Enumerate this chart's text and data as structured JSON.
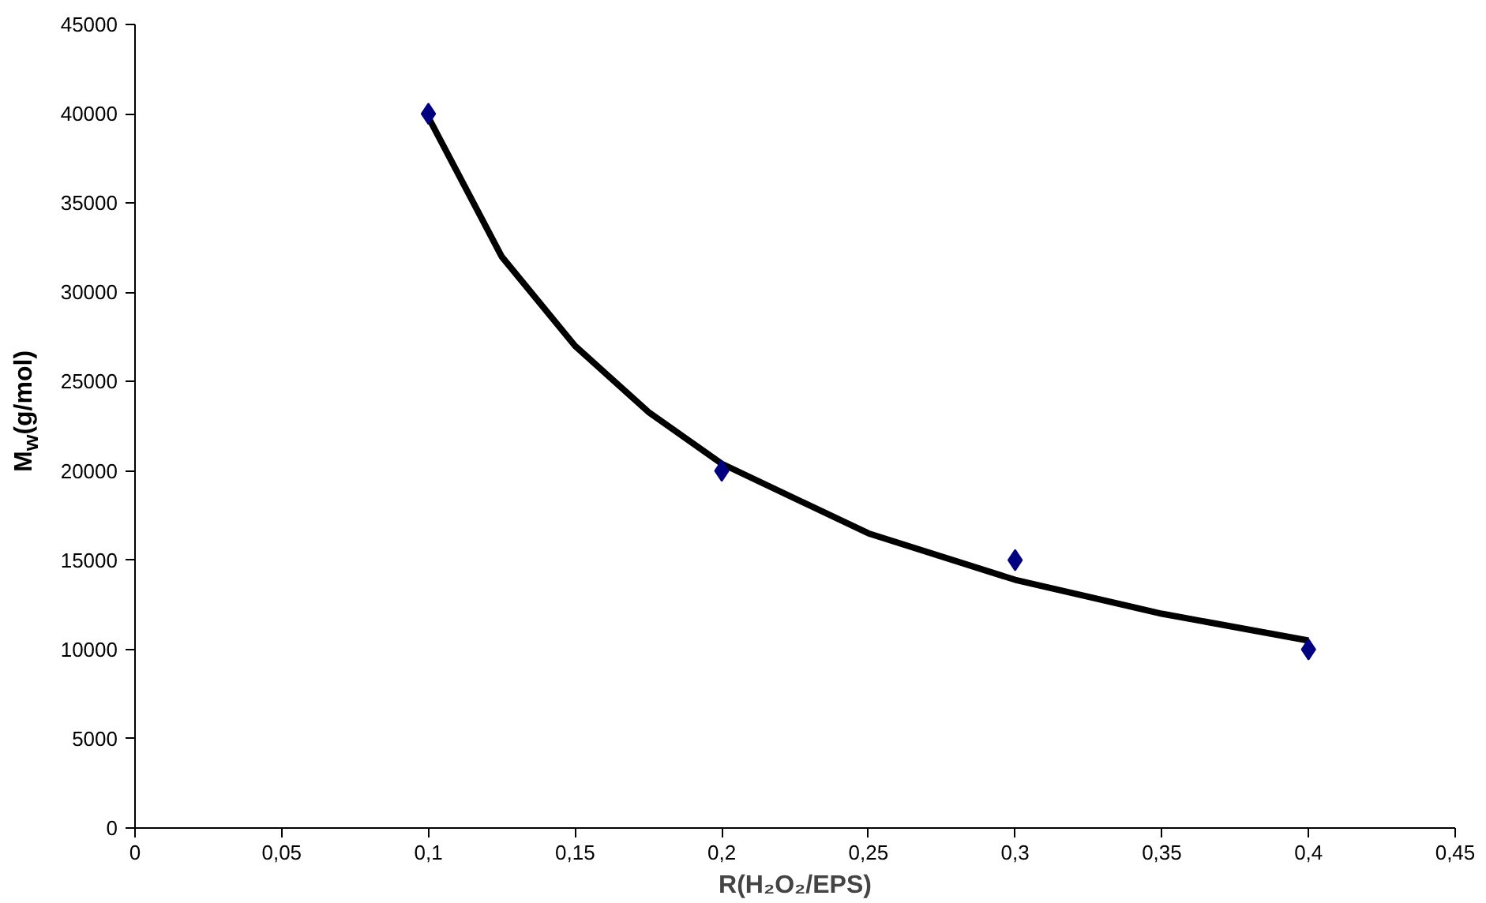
{
  "chart_data": {
    "type": "scatter",
    "xlabel": "R(H₂O₂/EPS)",
    "ylabel": "M$_{w}$(g/mol)",
    "x": [
      0.1,
      0.2,
      0.3,
      0.4
    ],
    "series": [
      {
        "color": "#000080",
        "marker": "diamond",
        "values": [
          40000,
          20000,
          15000,
          10000
        ]
      },
      {
        "type": "line",
        "color": "#000000",
        "marker": "none",
        "line_style": "solid",
        "x": [
          0.1,
          0.125,
          0.15,
          0.175,
          0.2,
          0.25,
          0.3,
          0.35,
          0.4
        ],
        "values": [
          39800,
          32000,
          27000,
          23300,
          20400,
          16500,
          13900,
          12000,
          10500
        ]
      }
    ],
    "xlim": [
      0,
      0.45
    ],
    "xticks": [
      0,
      {
        "value": 0.05,
        "label": "0,05"
      },
      {
        "value": 0.1,
        "label": "0,1"
      },
      {
        "value": 0.15,
        "label": "0,15"
      },
      {
        "value": 0.2,
        "label": "0,2"
      },
      {
        "value": 0.25,
        "label": "0,25"
      },
      {
        "value": 0.3,
        "label": "0,3"
      },
      {
        "value": 0.35,
        "label": "0,35"
      },
      {
        "value": 0.4,
        "label": "0,4"
      },
      {
        "value": 0.45,
        "label": "0,45"
      }
    ],
    "ylim": [
      0,
      45000
    ],
    "yticks": [
      0,
      5000,
      10000,
      15000,
      20000,
      25000,
      30000,
      35000,
      40000,
      45000
    ],
    "grid": false
  }
}
